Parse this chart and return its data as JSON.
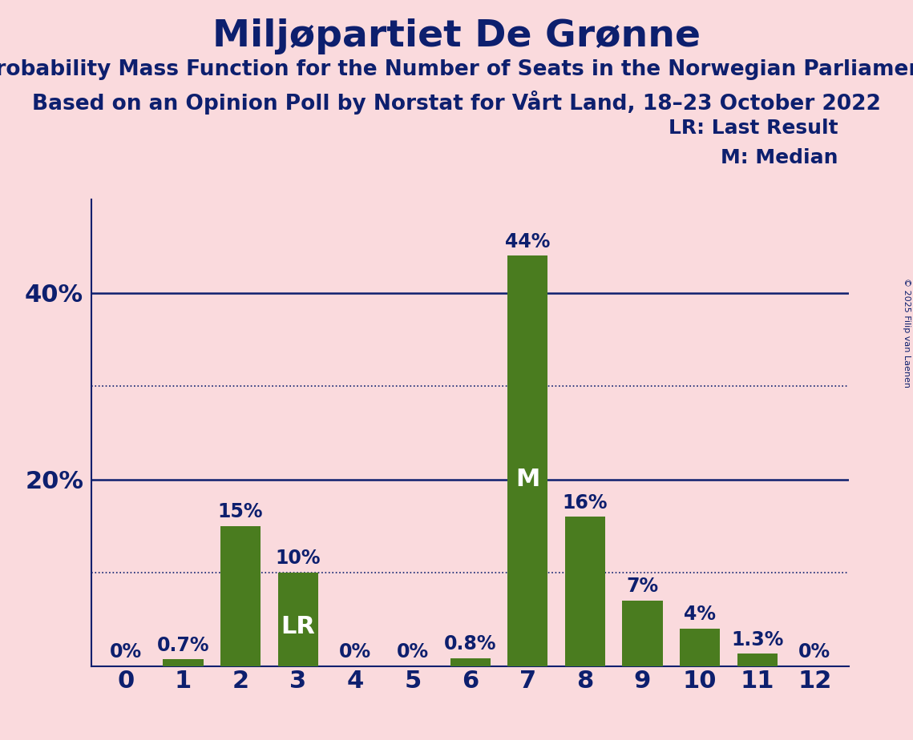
{
  "title": "Miljøpartiet De Grønne",
  "subtitle1": "Probability Mass Function for the Number of Seats in the Norwegian Parliament",
  "subtitle2": "Based on an Opinion Poll by Norstat for Vårt Land, 18–23 October 2022",
  "copyright": "© 2025 Filip van Laenen",
  "categories": [
    0,
    1,
    2,
    3,
    4,
    5,
    6,
    7,
    8,
    9,
    10,
    11,
    12
  ],
  "values": [
    0.0,
    0.7,
    15.0,
    10.0,
    0.0,
    0.0,
    0.8,
    44.0,
    16.0,
    7.0,
    4.0,
    1.3,
    0.0
  ],
  "labels": [
    "0%",
    "0.7%",
    "15%",
    "10%",
    "0%",
    "0%",
    "0.8%",
    "44%",
    "16%",
    "7%",
    "4%",
    "1.3%",
    "0%"
  ],
  "bar_color": "#4a7c1f",
  "background_color": "#fadadd",
  "text_color": "#0d1f6e",
  "title_fontsize": 34,
  "subtitle_fontsize": 19,
  "label_fontsize": 17,
  "axis_fontsize": 22,
  "ylim": [
    0,
    50
  ],
  "lr_bar": 3,
  "median_bar": 7,
  "lr_label": "LR",
  "median_label": "M",
  "dotted_lines": [
    10,
    30
  ],
  "solid_lines": [
    20,
    40
  ],
  "legend_line1": "LR: Last Result",
  "legend_line2": "M: Median"
}
